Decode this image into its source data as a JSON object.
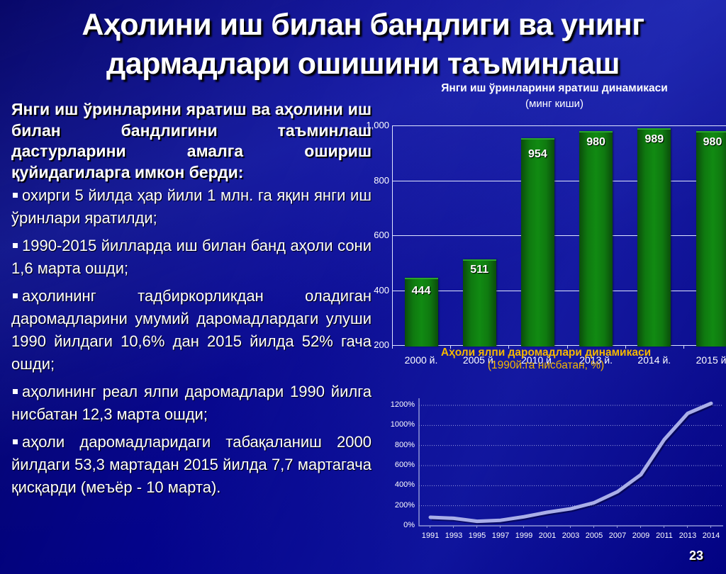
{
  "slide": {
    "title_line1": "Аҳолини иш билан бандлиги ва унинг",
    "title_line2": "дармадлари ошишини таъминлаш",
    "page_number": "23"
  },
  "text": {
    "intro": "Янги иш ўринларини яратиш ва аҳолини иш билан бандлигини таъминлаш дастурларини амалга ошириш қуйидагиларга имкон берди:",
    "bullets": [
      "охирги 5 йилда ҳар йили 1 млн. га яқин янги иш ўринлари яратилди;",
      "1990-2015 йилларда иш билан банд аҳоли сони 1,6 марта ошди;",
      "аҳолининг тадбиркорликдан оладиган даромадларини умумий даромадлардаги улуши 1990 йилдаги 10,6% дан 2015 йилда 52% гача ошди;",
      "аҳолининг реал ялпи даромадлари 1990 йилга нисбатан 12,3 марта ошди;",
      "аҳоли даромадларидаги табақаланиш 2000 йилдаги 53,3 мартадан 2015 йилда 7,7 мартагача қисқарди (меъёр - 10 марта)."
    ]
  },
  "colors": {
    "background": "#0a0a8c",
    "bar_green": "#0f7a10",
    "line_color": "#a9aee8",
    "line_chart_title": "#f5b800"
  },
  "chart_data": [
    {
      "type": "bar",
      "title": "Янги иш ўринларини яратиш динамикаси",
      "subtitle": "(минг киши)",
      "categories": [
        "2000 й.",
        "2005 й.",
        "2010 й.",
        "2013 й.",
        "2014 й.",
        "2015 й."
      ],
      "values": [
        444,
        511,
        954,
        980,
        989,
        980
      ],
      "xlabel": "",
      "ylabel": "",
      "ylim": [
        200,
        1000
      ],
      "yticks": [
        "200",
        "400",
        "600",
        "800",
        "1,000"
      ],
      "grid": true,
      "data_labels": true
    },
    {
      "type": "line",
      "title": "Аҳоли ялпи даромадлари динамикаси",
      "subtitle": "(1990й.га нисбатан, %)",
      "x": [
        "1991",
        "1993",
        "1995",
        "1997",
        "1999",
        "2001",
        "2003",
        "2005",
        "2007",
        "2009",
        "2011",
        "2013",
        "2014"
      ],
      "series": [
        {
          "name": "Аҳоли ялпи даромадлари",
          "values": [
            85,
            75,
            45,
            55,
            90,
            135,
            170,
            230,
            340,
            510,
            860,
            1120,
            1220
          ]
        }
      ],
      "xlabel": "",
      "ylabel": "",
      "ylim": [
        0,
        1200
      ],
      "yticks": [
        "0%",
        "200%",
        "400%",
        "600%",
        "800%",
        "1000%",
        "1200%"
      ],
      "grid": true,
      "legend": "none"
    }
  ]
}
